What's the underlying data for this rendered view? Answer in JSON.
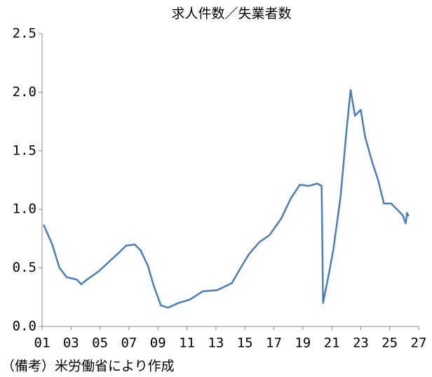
{
  "chart_data": {
    "type": "line",
    "title": "求人件数／失業者数",
    "note": "（備考）米労働省により作成",
    "x": [
      2001.1,
      2001.7,
      2002.2,
      2002.7,
      2003.4,
      2003.7,
      2004.1,
      2004.9,
      2005.6,
      2006.3,
      2006.8,
      2007.4,
      2007.8,
      2008.3,
      2008.7,
      2009.2,
      2009.7,
      2010.4,
      2011.2,
      2012.1,
      2013.1,
      2014.1,
      2014.8,
      2015.3,
      2016.0,
      2016.7,
      2017.5,
      2018.2,
      2018.8,
      2019.4,
      2020.0,
      2020.3,
      2020.4,
      2020.8,
      2021.1,
      2021.6,
      2022.0,
      2022.3,
      2022.6,
      2023.0,
      2023.3,
      2023.8,
      2024.2,
      2024.6,
      2025.1,
      2025.5,
      2025.9,
      2026.1,
      2026.2,
      2026.3
    ],
    "series": [
      {
        "color": "#4a7ebb",
        "values": [
          0.87,
          0.7,
          0.5,
          0.42,
          0.4,
          0.36,
          0.4,
          0.47,
          0.55,
          0.63,
          0.69,
          0.7,
          0.65,
          0.52,
          0.35,
          0.18,
          0.16,
          0.2,
          0.23,
          0.3,
          0.31,
          0.37,
          0.52,
          0.62,
          0.72,
          0.78,
          0.92,
          1.1,
          1.21,
          1.2,
          1.22,
          1.2,
          0.2,
          0.45,
          0.65,
          1.1,
          1.65,
          2.02,
          1.8,
          1.85,
          1.62,
          1.4,
          1.25,
          1.05,
          1.05,
          1.0,
          0.95,
          0.88,
          0.97,
          0.94
        ]
      }
    ],
    "xlim": [
      2001,
      2027
    ],
    "xticks": [
      {
        "value": 2001,
        "label": "01"
      },
      {
        "value": 2003,
        "label": "03"
      },
      {
        "value": 2005,
        "label": "05"
      },
      {
        "value": 2007,
        "label": "07"
      },
      {
        "value": 2009,
        "label": "09"
      },
      {
        "value": 2011,
        "label": "11"
      },
      {
        "value": 2013,
        "label": "13"
      },
      {
        "value": 2015,
        "label": "15"
      },
      {
        "value": 2017,
        "label": "17"
      },
      {
        "value": 2019,
        "label": "19"
      },
      {
        "value": 2021,
        "label": "21"
      },
      {
        "value": 2023,
        "label": "23"
      },
      {
        "value": 2025,
        "label": "25"
      },
      {
        "value": 2027,
        "label": "27"
      }
    ],
    "ylim": [
      0,
      2.5
    ],
    "yticks": [
      {
        "value": 0,
        "label": "0.0"
      },
      0.5,
      {
        "value": 1,
        "label": "1.0"
      },
      1.5,
      {
        "value": 2,
        "label": "2.0"
      },
      2.5
    ],
    "grid": false
  }
}
